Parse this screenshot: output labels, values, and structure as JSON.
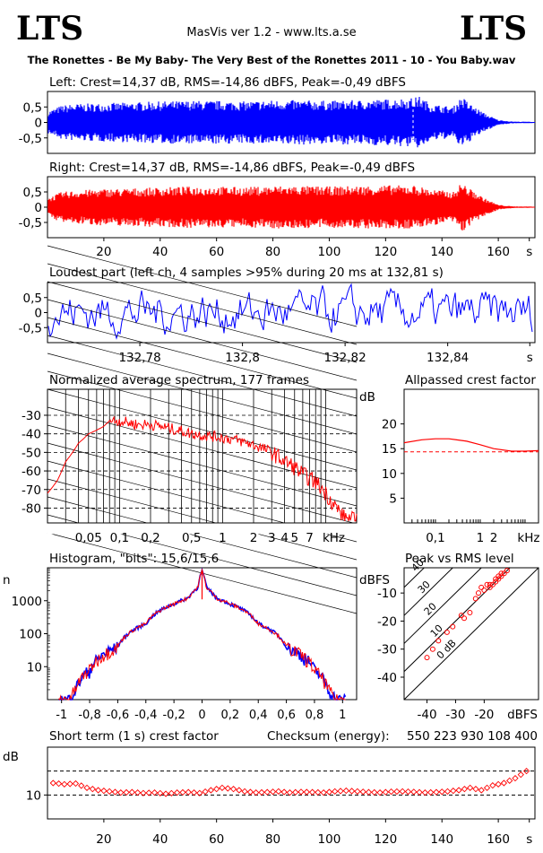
{
  "header": {
    "logo_left": "LTS",
    "logo_right": "LTS",
    "version": "MasVis ver 1.2 - www.lts.a.se",
    "filename": "The Ronettes - Be My Baby- The Very Best of the Ronettes 2011 - 10 - You Baby.wav"
  },
  "colors": {
    "left": "#0000ff",
    "right": "#ff0000",
    "axis": "#000000"
  },
  "chart_data": [
    {
      "id": "left-waveform",
      "type": "line",
      "title": "Left: Crest=14,37 dB, RMS=-14,86 dBFS, Peak=-0,49 dBFS",
      "ylim": [
        -1,
        1
      ],
      "yticks": [
        "0,5",
        "0",
        "-0,5"
      ],
      "ytick_values": [
        0.5,
        0,
        -0.5
      ],
      "xlim": [
        0,
        173
      ],
      "envelope_x": [
        0,
        5,
        10,
        20,
        30,
        40,
        50,
        60,
        70,
        80,
        90,
        100,
        110,
        120,
        130,
        132,
        136,
        140,
        144,
        147,
        150,
        155,
        160,
        165,
        173
      ],
      "envelope_y": [
        0.35,
        0.55,
        0.6,
        0.62,
        0.65,
        0.68,
        0.7,
        0.7,
        0.68,
        0.72,
        0.72,
        0.7,
        0.72,
        0.75,
        0.8,
        0.85,
        0.6,
        0.55,
        0.5,
        0.85,
        0.6,
        0.3,
        0.08,
        0.03,
        0.02
      ]
    },
    {
      "id": "right-waveform",
      "type": "line",
      "title": "Right: Crest=14,37 dB, RMS=-14,86 dBFS, Peak=-0,49 dBFS",
      "ylim": [
        -1,
        1
      ],
      "yticks": [
        "0,5",
        "0",
        "-0,5"
      ],
      "ytick_values": [
        0.5,
        0,
        -0.5
      ],
      "xlim": [
        0,
        173
      ],
      "xticks": [
        "20",
        "40",
        "60",
        "80",
        "100",
        "120",
        "140",
        "160",
        "s"
      ],
      "xtick_values": [
        20,
        40,
        60,
        80,
        100,
        120,
        140,
        160,
        171
      ],
      "envelope_x": [
        0,
        5,
        10,
        20,
        30,
        40,
        50,
        60,
        70,
        80,
        90,
        100,
        110,
        120,
        130,
        136,
        140,
        144,
        147,
        150,
        155,
        160,
        165,
        173
      ],
      "envelope_y": [
        0.3,
        0.5,
        0.55,
        0.6,
        0.62,
        0.65,
        0.68,
        0.68,
        0.66,
        0.7,
        0.7,
        0.68,
        0.7,
        0.72,
        0.72,
        0.6,
        0.55,
        0.5,
        0.82,
        0.6,
        0.3,
        0.08,
        0.03,
        0.02
      ]
    },
    {
      "id": "loudest-part",
      "type": "line",
      "title": "Loudest part (left  ch, 4 samples >95% during 20 ms at 132,81 s)",
      "ylim": [
        -1,
        1
      ],
      "yticks": [
        "0,5",
        "0",
        "-0,5"
      ],
      "ytick_values": [
        0.5,
        0,
        -0.5
      ],
      "xlim": [
        132.762,
        132.857
      ],
      "xticks": [
        "132,78",
        "132,8",
        "132,82",
        "132,84",
        "s"
      ],
      "xtick_values": [
        132.78,
        132.8,
        132.82,
        132.84,
        132.856
      ]
    },
    {
      "id": "spectrum",
      "type": "line",
      "title": "Normalized average spectrum, 177 frames",
      "ylabel": "dB",
      "yticks": [
        "-30",
        "-40",
        "-50",
        "-60",
        "-70",
        "-80"
      ],
      "ytick_values": [
        -30,
        -40,
        -50,
        -60,
        -70,
        -80
      ],
      "ylim": [
        -88,
        -16
      ],
      "xscale": "log",
      "xlim": [
        0.02,
        20
      ],
      "xticks": [
        "0,05",
        "0,1",
        "0,2",
        "0,5",
        "1",
        "2",
        "3",
        "4",
        "5",
        "7",
        "kHz"
      ],
      "xtick_values": [
        0.05,
        0.1,
        0.2,
        0.5,
        1,
        2,
        3,
        4,
        5,
        7,
        12
      ],
      "x": [
        0.02,
        0.025,
        0.03,
        0.04,
        0.05,
        0.06,
        0.07,
        0.08,
        0.1,
        0.12,
        0.15,
        0.2,
        0.3,
        0.5,
        0.7,
        1,
        1.5,
        2,
        3,
        4,
        5,
        6,
        7,
        8,
        10,
        12,
        15,
        20
      ],
      "y": [
        -72,
        -65,
        -55,
        -45,
        -40,
        -38,
        -36,
        -33,
        -33,
        -34,
        -35,
        -35,
        -37,
        -40,
        -41,
        -42,
        -44,
        -46,
        -50,
        -55,
        -58,
        -62,
        -64,
        -66,
        -72,
        -78,
        -85,
        -87
      ]
    },
    {
      "id": "allpassed-crest",
      "type": "line",
      "title": "Allpassed crest factor",
      "ylabel": "dB",
      "yticks": [
        "20",
        "15",
        "10",
        "5"
      ],
      "ytick_values": [
        20,
        15,
        10,
        5
      ],
      "ylim": [
        0,
        27
      ],
      "xscale": "log",
      "xlim": [
        0.02,
        20
      ],
      "xticks": [
        "0,1",
        "1",
        "2",
        "kHz"
      ],
      "xtick_values": [
        0.1,
        1,
        2,
        12
      ],
      "reference": 14.37,
      "x": [
        0.02,
        0.05,
        0.1,
        0.2,
        0.5,
        1,
        2,
        5,
        10,
        20
      ],
      "y": [
        16.2,
        16.8,
        17.0,
        17.0,
        16.5,
        15.8,
        15.0,
        14.5,
        14.5,
        14.6
      ]
    },
    {
      "id": "histogram",
      "type": "line",
      "title": "Histogram, \"bits\": 15,6/15,6",
      "ylabel": "n",
      "yscale": "log",
      "yticks": [
        "1000",
        "100",
        "10"
      ],
      "ytick_values": [
        1000,
        100,
        10
      ],
      "ylim": [
        1,
        10000
      ],
      "xlim": [
        -1.1,
        1.1
      ],
      "xticks": [
        "-1",
        "-0,8",
        "-0,6",
        "-0,4",
        "-0,2",
        "0",
        "0,2",
        "0,4",
        "0,6",
        "0,8",
        "1"
      ],
      "xtick_values": [
        -1,
        -0.8,
        -0.6,
        -0.4,
        -0.2,
        0,
        0.2,
        0.4,
        0.6,
        0.8,
        1
      ],
      "x": [
        -1.0,
        -0.95,
        -0.9,
        -0.85,
        -0.8,
        -0.6,
        -0.4,
        -0.2,
        -0.1,
        -0.03,
        0,
        0.03,
        0.1,
        0.2,
        0.4,
        0.6,
        0.8,
        0.85,
        0.9,
        0.95,
        1.0
      ],
      "y": [
        1,
        1,
        2,
        5,
        8,
        40,
        200,
        800,
        1200,
        2500,
        8000,
        2500,
        1200,
        800,
        200,
        40,
        8,
        5,
        2,
        1,
        1
      ]
    },
    {
      "id": "peak-vs-rms",
      "type": "scatter",
      "title": "Peak vs RMS level",
      "ylabel": "dBFS",
      "xlabel": "dBFS",
      "xlim": [
        -48,
        -1
      ],
      "ylim": [
        -48,
        -1
      ],
      "xticks": [
        "-40",
        "-30",
        "-20"
      ],
      "xtick_values": [
        -40,
        -30,
        -20
      ],
      "yticks": [
        "-10",
        "-20",
        "-30",
        "-40"
      ],
      "ytick_values": [
        -10,
        -20,
        -30,
        -40
      ],
      "crest_lines": [
        "40",
        "30",
        "20",
        "10",
        "0 dB"
      ],
      "crest_values": [
        40,
        30,
        20,
        10,
        0
      ],
      "rms": [
        -40,
        -38,
        -36,
        -33,
        -31,
        -28,
        -27,
        -25,
        -23,
        -22,
        -21,
        -20,
        -19,
        -18,
        -17,
        -16,
        -15,
        -14,
        -13,
        -12,
        -16,
        -18,
        -14,
        -15
      ],
      "peak": [
        -33,
        -30,
        -27,
        -24,
        -22,
        -18,
        -19,
        -17,
        -12,
        -10,
        -8,
        -9,
        -7,
        -8,
        -7,
        -6,
        -5,
        -4,
        -3,
        -2,
        -5,
        -7,
        -3,
        -4
      ]
    },
    {
      "id": "short-term-crest",
      "type": "scatter",
      "title": "Short term (1 s) crest factor",
      "checksum_label": "Checksum (energy):",
      "checksum_value": "550 223 930 108 400",
      "ylabel": "dB",
      "ylim": [
        0,
        30
      ],
      "yticks": [
        "10"
      ],
      "ytick_values": [
        10
      ],
      "ref_lines": [
        10,
        20
      ],
      "xlim": [
        0,
        173
      ],
      "xticks": [
        "20",
        "40",
        "60",
        "80",
        "100",
        "120",
        "140",
        "160",
        "s"
      ],
      "xtick_values": [
        20,
        40,
        60,
        80,
        100,
        120,
        140,
        160,
        171
      ],
      "x": [
        2,
        6,
        10,
        14,
        18,
        22,
        26,
        30,
        34,
        38,
        42,
        46,
        50,
        54,
        58,
        62,
        66,
        70,
        74,
        78,
        82,
        86,
        90,
        94,
        98,
        102,
        106,
        110,
        114,
        118,
        122,
        126,
        130,
        134,
        138,
        142,
        146,
        150,
        154,
        158,
        162,
        166,
        170
      ],
      "y": [
        15,
        14.5,
        14.8,
        13,
        12,
        11.5,
        11,
        11.2,
        10.8,
        11,
        10.5,
        11,
        11.2,
        10.8,
        12,
        13,
        12.5,
        11.5,
        11,
        11.2,
        11.5,
        11,
        11.3,
        11.2,
        11,
        11.5,
        11.8,
        11.5,
        11.2,
        11,
        11.4,
        11.5,
        11.3,
        11,
        11.2,
        11.5,
        12,
        13,
        12,
        14,
        15,
        17,
        20
      ]
    }
  ]
}
